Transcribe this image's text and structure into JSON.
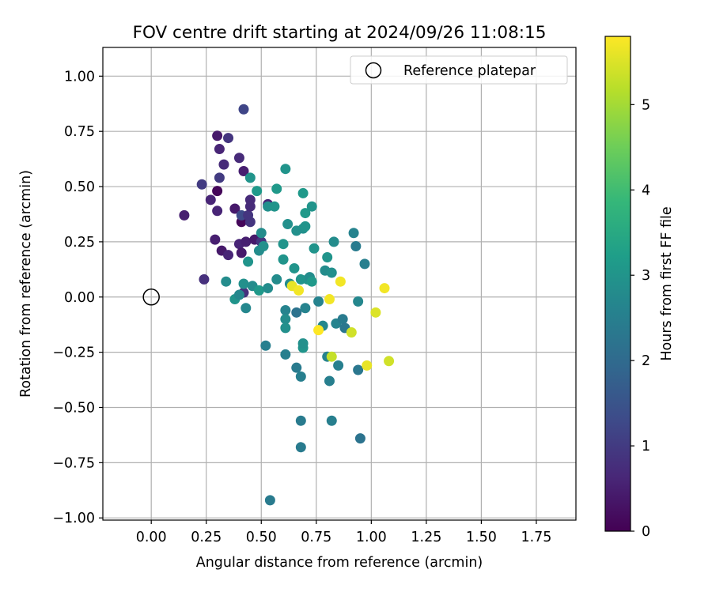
{
  "chart_data": {
    "type": "scatter",
    "title": "FOV centre drift starting at 2024/09/26 11:08:15",
    "xlabel": "Angular distance from reference (arcmin)",
    "ylabel": "Rotation from reference (arcmin)",
    "xlim": [
      -0.22,
      1.93
    ],
    "ylim": [
      -1.01,
      1.13
    ],
    "xticks": [
      0.0,
      0.25,
      0.5,
      0.75,
      1.0,
      1.25,
      1.5,
      1.75
    ],
    "xtick_labels": [
      "0.00",
      "0.25",
      "0.50",
      "0.75",
      "1.00",
      "1.25",
      "1.50",
      "1.75"
    ],
    "yticks": [
      -1.0,
      -0.75,
      -0.5,
      -0.25,
      0.0,
      0.25,
      0.5,
      0.75,
      1.0
    ],
    "ytick_labels": [
      "−1.00",
      "−0.75",
      "−0.50",
      "−0.25",
      "0.00",
      "0.25",
      "0.50",
      "0.75",
      "1.00"
    ],
    "grid": true,
    "legend": {
      "location": "upper right",
      "entries": [
        "Reference platepar"
      ]
    },
    "colorbar": {
      "label": "Hours from first FF file",
      "range": [
        0,
        5.8
      ],
      "ticks": [
        0,
        1,
        2,
        3,
        4,
        5
      ],
      "tick_labels": [
        "0",
        "1",
        "2",
        "3",
        "4",
        "5"
      ],
      "colormap": "viridis"
    },
    "reference_point": {
      "x": 0.0,
      "y": 0.0
    },
    "colormap_stops": [
      "#440154",
      "#482878",
      "#3e4a89",
      "#31688e",
      "#26828e",
      "#1f9e89",
      "#35b779",
      "#6ece58",
      "#b5de2b",
      "#fde725"
    ],
    "points": [
      {
        "x": 0.15,
        "y": 0.37,
        "c": 0.5
      },
      {
        "x": 0.24,
        "y": 0.08,
        "c": 0.8
      },
      {
        "x": 0.23,
        "y": 0.51,
        "c": 1.0
      },
      {
        "x": 0.27,
        "y": 0.44,
        "c": 0.6
      },
      {
        "x": 0.29,
        "y": 0.26,
        "c": 0.5
      },
      {
        "x": 0.3,
        "y": 0.73,
        "c": 0.4
      },
      {
        "x": 0.31,
        "y": 0.67,
        "c": 0.6
      },
      {
        "x": 0.3,
        "y": 0.48,
        "c": 0.1
      },
      {
        "x": 0.31,
        "y": 0.54,
        "c": 1.0
      },
      {
        "x": 0.3,
        "y": 0.39,
        "c": 0.6
      },
      {
        "x": 0.32,
        "y": 0.21,
        "c": 0.4
      },
      {
        "x": 0.33,
        "y": 0.6,
        "c": 0.7
      },
      {
        "x": 0.35,
        "y": 0.72,
        "c": 0.9
      },
      {
        "x": 0.35,
        "y": 0.19,
        "c": 0.6
      },
      {
        "x": 0.38,
        "y": 0.4,
        "c": 0.4
      },
      {
        "x": 0.4,
        "y": 0.63,
        "c": 0.7
      },
      {
        "x": 0.4,
        "y": 0.24,
        "c": 0.6
      },
      {
        "x": 0.41,
        "y": 0.34,
        "c": 0.1
      },
      {
        "x": 0.41,
        "y": 0.37,
        "c": 1.3
      },
      {
        "x": 0.41,
        "y": 0.2,
        "c": 0.4
      },
      {
        "x": 0.42,
        "y": 0.85,
        "c": 1.2
      },
      {
        "x": 0.42,
        "y": 0.57,
        "c": 0.5
      },
      {
        "x": 0.42,
        "y": 0.02,
        "c": 0.8
      },
      {
        "x": 0.43,
        "y": 0.25,
        "c": 0.5
      },
      {
        "x": 0.44,
        "y": 0.37,
        "c": 0.9
      },
      {
        "x": 0.45,
        "y": 0.44,
        "c": 0.7
      },
      {
        "x": 0.45,
        "y": 0.41,
        "c": 0.7
      },
      {
        "x": 0.45,
        "y": 0.34,
        "c": 0.9
      },
      {
        "x": 0.47,
        "y": 0.26,
        "c": 0.4
      },
      {
        "x": 0.5,
        "y": 0.25,
        "c": 0.9
      },
      {
        "x": 0.53,
        "y": 0.42,
        "c": 0.6
      },
      {
        "x": 0.34,
        "y": 0.07,
        "c": 2.8
      },
      {
        "x": 0.38,
        "y": -0.01,
        "c": 3.0
      },
      {
        "x": 0.4,
        "y": 0.01,
        "c": 2.7
      },
      {
        "x": 0.42,
        "y": 0.06,
        "c": 2.9
      },
      {
        "x": 0.43,
        "y": -0.05,
        "c": 2.7
      },
      {
        "x": 0.44,
        "y": 0.16,
        "c": 3.0
      },
      {
        "x": 0.45,
        "y": 0.54,
        "c": 3.0
      },
      {
        "x": 0.46,
        "y": 0.05,
        "c": 2.8
      },
      {
        "x": 0.48,
        "y": 0.48,
        "c": 3.1
      },
      {
        "x": 0.49,
        "y": 0.21,
        "c": 2.8
      },
      {
        "x": 0.49,
        "y": 0.03,
        "c": 3.1
      },
      {
        "x": 0.5,
        "y": 0.29,
        "c": 2.8
      },
      {
        "x": 0.51,
        "y": 0.23,
        "c": 2.9
      },
      {
        "x": 0.53,
        "y": 0.41,
        "c": 2.9
      },
      {
        "x": 0.53,
        "y": 0.04,
        "c": 2.8
      },
      {
        "x": 0.52,
        "y": -0.22,
        "c": 2.5
      },
      {
        "x": 0.54,
        "y": -0.92,
        "c": 2.4
      },
      {
        "x": 0.56,
        "y": 0.41,
        "c": 3.0
      },
      {
        "x": 0.57,
        "y": 0.49,
        "c": 3.1
      },
      {
        "x": 0.57,
        "y": 0.08,
        "c": 2.8
      },
      {
        "x": 0.6,
        "y": 0.24,
        "c": 3.0
      },
      {
        "x": 0.6,
        "y": 0.17,
        "c": 3.0
      },
      {
        "x": 0.61,
        "y": 0.58,
        "c": 3.0
      },
      {
        "x": 0.61,
        "y": -0.06,
        "c": 2.6
      },
      {
        "x": 0.61,
        "y": -0.1,
        "c": 2.8
      },
      {
        "x": 0.61,
        "y": -0.14,
        "c": 2.9
      },
      {
        "x": 0.61,
        "y": -0.26,
        "c": 2.5
      },
      {
        "x": 0.62,
        "y": 0.33,
        "c": 2.9
      },
      {
        "x": 0.63,
        "y": 0.06,
        "c": 2.8
      },
      {
        "x": 0.65,
        "y": 0.13,
        "c": 3.0
      },
      {
        "x": 0.66,
        "y": 0.3,
        "c": 2.9
      },
      {
        "x": 0.66,
        "y": -0.07,
        "c": 2.2
      },
      {
        "x": 0.66,
        "y": -0.32,
        "c": 2.4
      },
      {
        "x": 0.68,
        "y": 0.08,
        "c": 3.0
      },
      {
        "x": 0.68,
        "y": -0.56,
        "c": 2.4
      },
      {
        "x": 0.68,
        "y": -0.68,
        "c": 2.4
      },
      {
        "x": 0.68,
        "y": -0.36,
        "c": 2.5
      },
      {
        "x": 0.69,
        "y": 0.47,
        "c": 3.1
      },
      {
        "x": 0.69,
        "y": 0.31,
        "c": 2.9
      },
      {
        "x": 0.69,
        "y": -0.23,
        "c": 3.0
      },
      {
        "x": 0.69,
        "y": -0.21,
        "c": 2.9
      },
      {
        "x": 0.7,
        "y": 0.32,
        "c": 3.0
      },
      {
        "x": 0.7,
        "y": 0.38,
        "c": 3.1
      },
      {
        "x": 0.7,
        "y": -0.05,
        "c": 2.6
      },
      {
        "x": 0.71,
        "y": 0.08,
        "c": 3.0
      },
      {
        "x": 0.72,
        "y": 0.09,
        "c": 2.8
      },
      {
        "x": 0.73,
        "y": 0.41,
        "c": 3.0
      },
      {
        "x": 0.73,
        "y": 0.07,
        "c": 3.1
      },
      {
        "x": 0.74,
        "y": 0.22,
        "c": 3.0
      },
      {
        "x": 0.76,
        "y": -0.02,
        "c": 2.6
      },
      {
        "x": 0.78,
        "y": -0.13,
        "c": 2.7
      },
      {
        "x": 0.79,
        "y": 0.12,
        "c": 2.8
      },
      {
        "x": 0.8,
        "y": 0.18,
        "c": 3.0
      },
      {
        "x": 0.8,
        "y": -0.27,
        "c": 2.6
      },
      {
        "x": 0.81,
        "y": -0.38,
        "c": 2.5
      },
      {
        "x": 0.82,
        "y": 0.11,
        "c": 2.9
      },
      {
        "x": 0.82,
        "y": -0.56,
        "c": 2.5
      },
      {
        "x": 0.83,
        "y": 0.25,
        "c": 2.8
      },
      {
        "x": 0.84,
        "y": -0.12,
        "c": 2.6
      },
      {
        "x": 0.85,
        "y": -0.31,
        "c": 2.5
      },
      {
        "x": 0.87,
        "y": -0.1,
        "c": 2.4
      },
      {
        "x": 0.88,
        "y": -0.14,
        "c": 2.3
      },
      {
        "x": 0.92,
        "y": 0.29,
        "c": 2.6
      },
      {
        "x": 0.93,
        "y": 0.23,
        "c": 2.4
      },
      {
        "x": 0.94,
        "y": -0.02,
        "c": 2.7
      },
      {
        "x": 0.94,
        "y": -0.33,
        "c": 2.3
      },
      {
        "x": 0.95,
        "y": -0.64,
        "c": 2.2
      },
      {
        "x": 0.97,
        "y": 0.15,
        "c": 2.5
      },
      {
        "x": 0.64,
        "y": 0.05,
        "c": 5.6
      },
      {
        "x": 0.67,
        "y": 0.03,
        "c": 5.7
      },
      {
        "x": 0.76,
        "y": -0.15,
        "c": 5.8
      },
      {
        "x": 0.81,
        "y": -0.01,
        "c": 5.7
      },
      {
        "x": 0.82,
        "y": -0.27,
        "c": 5.3
      },
      {
        "x": 0.86,
        "y": 0.07,
        "c": 5.7
      },
      {
        "x": 0.91,
        "y": -0.16,
        "c": 5.4
      },
      {
        "x": 0.98,
        "y": -0.31,
        "c": 5.6
      },
      {
        "x": 1.02,
        "y": -0.07,
        "c": 5.5
      },
      {
        "x": 1.06,
        "y": 0.04,
        "c": 5.7
      },
      {
        "x": 1.08,
        "y": -0.29,
        "c": 5.4
      }
    ]
  }
}
